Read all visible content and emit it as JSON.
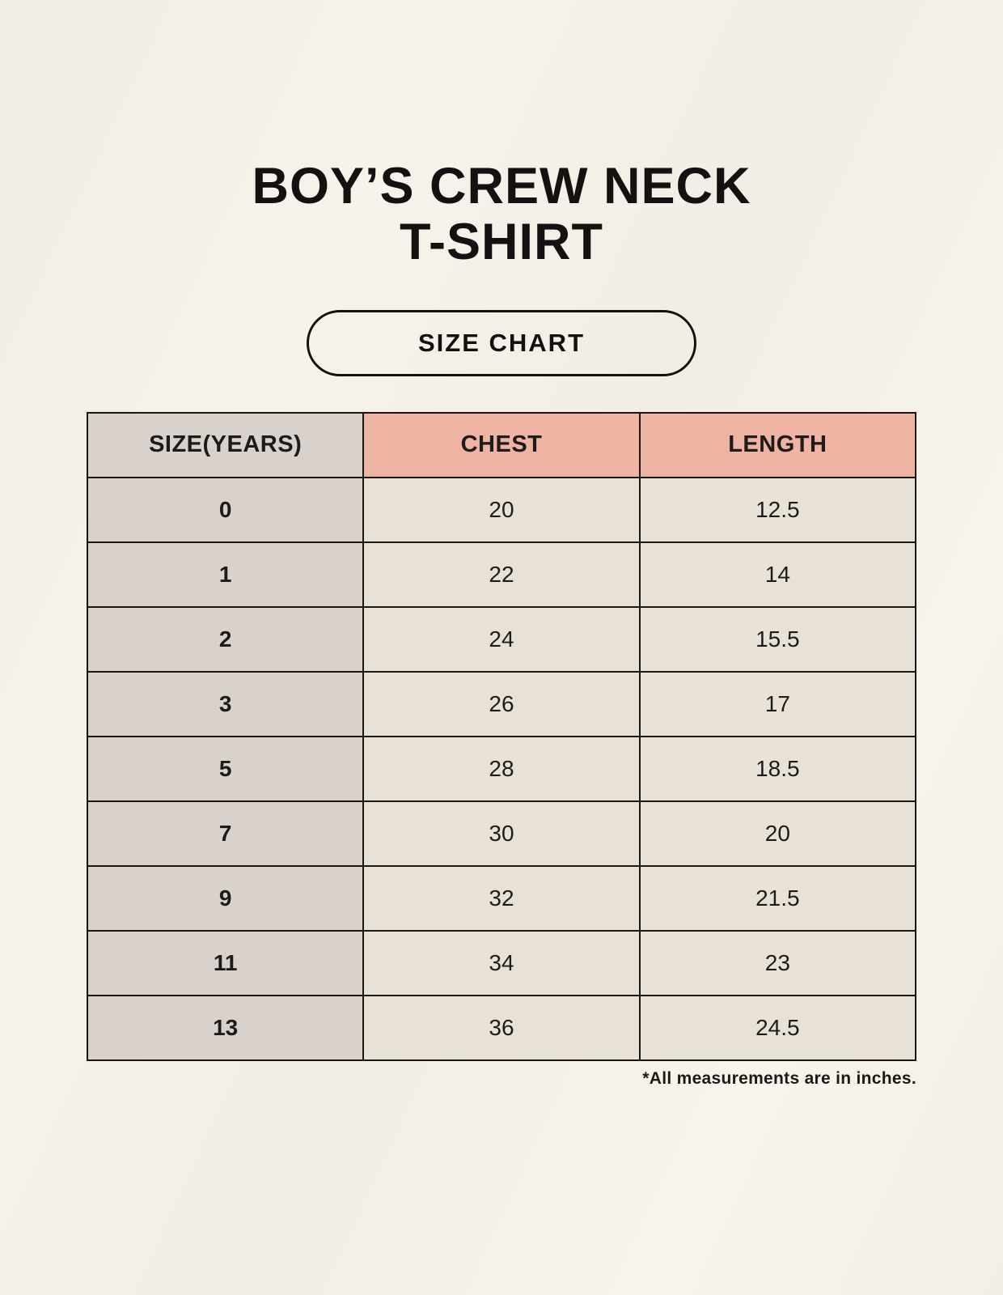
{
  "page": {
    "title_line1": "BOY’S CREW NECK",
    "title_line2": "T-SHIRT",
    "size_chart_label": "SIZE CHART",
    "footnote": "*All measurements are in inches."
  },
  "colors": {
    "background": "#f5f1e8",
    "header_accent": "#efb3a3",
    "row_label_bg": "#d9d2cc",
    "cell_bg": "#e8e1d5",
    "border": "#181715",
    "text": "#1d1c1a"
  },
  "chart_data": {
    "type": "table",
    "title": "BOY’S CREW NECK T-SHIRT",
    "subtitle": "SIZE CHART",
    "columns": [
      "SIZE(YEARS)",
      "CHEST",
      "LENGTH"
    ],
    "rows": [
      [
        "0",
        "20",
        "12.5"
      ],
      [
        "1",
        "22",
        "14"
      ],
      [
        "2",
        "24",
        "15.5"
      ],
      [
        "3",
        "26",
        "17"
      ],
      [
        "5",
        "28",
        "18.5"
      ],
      [
        "7",
        "30",
        "20"
      ],
      [
        "9",
        "32",
        "21.5"
      ],
      [
        "11",
        "34",
        "23"
      ],
      [
        "13",
        "36",
        "24.5"
      ]
    ],
    "units_note": "*All measurements are in inches.",
    "layout": "3 equal columns, first column shaded gray, header accented salmon"
  }
}
